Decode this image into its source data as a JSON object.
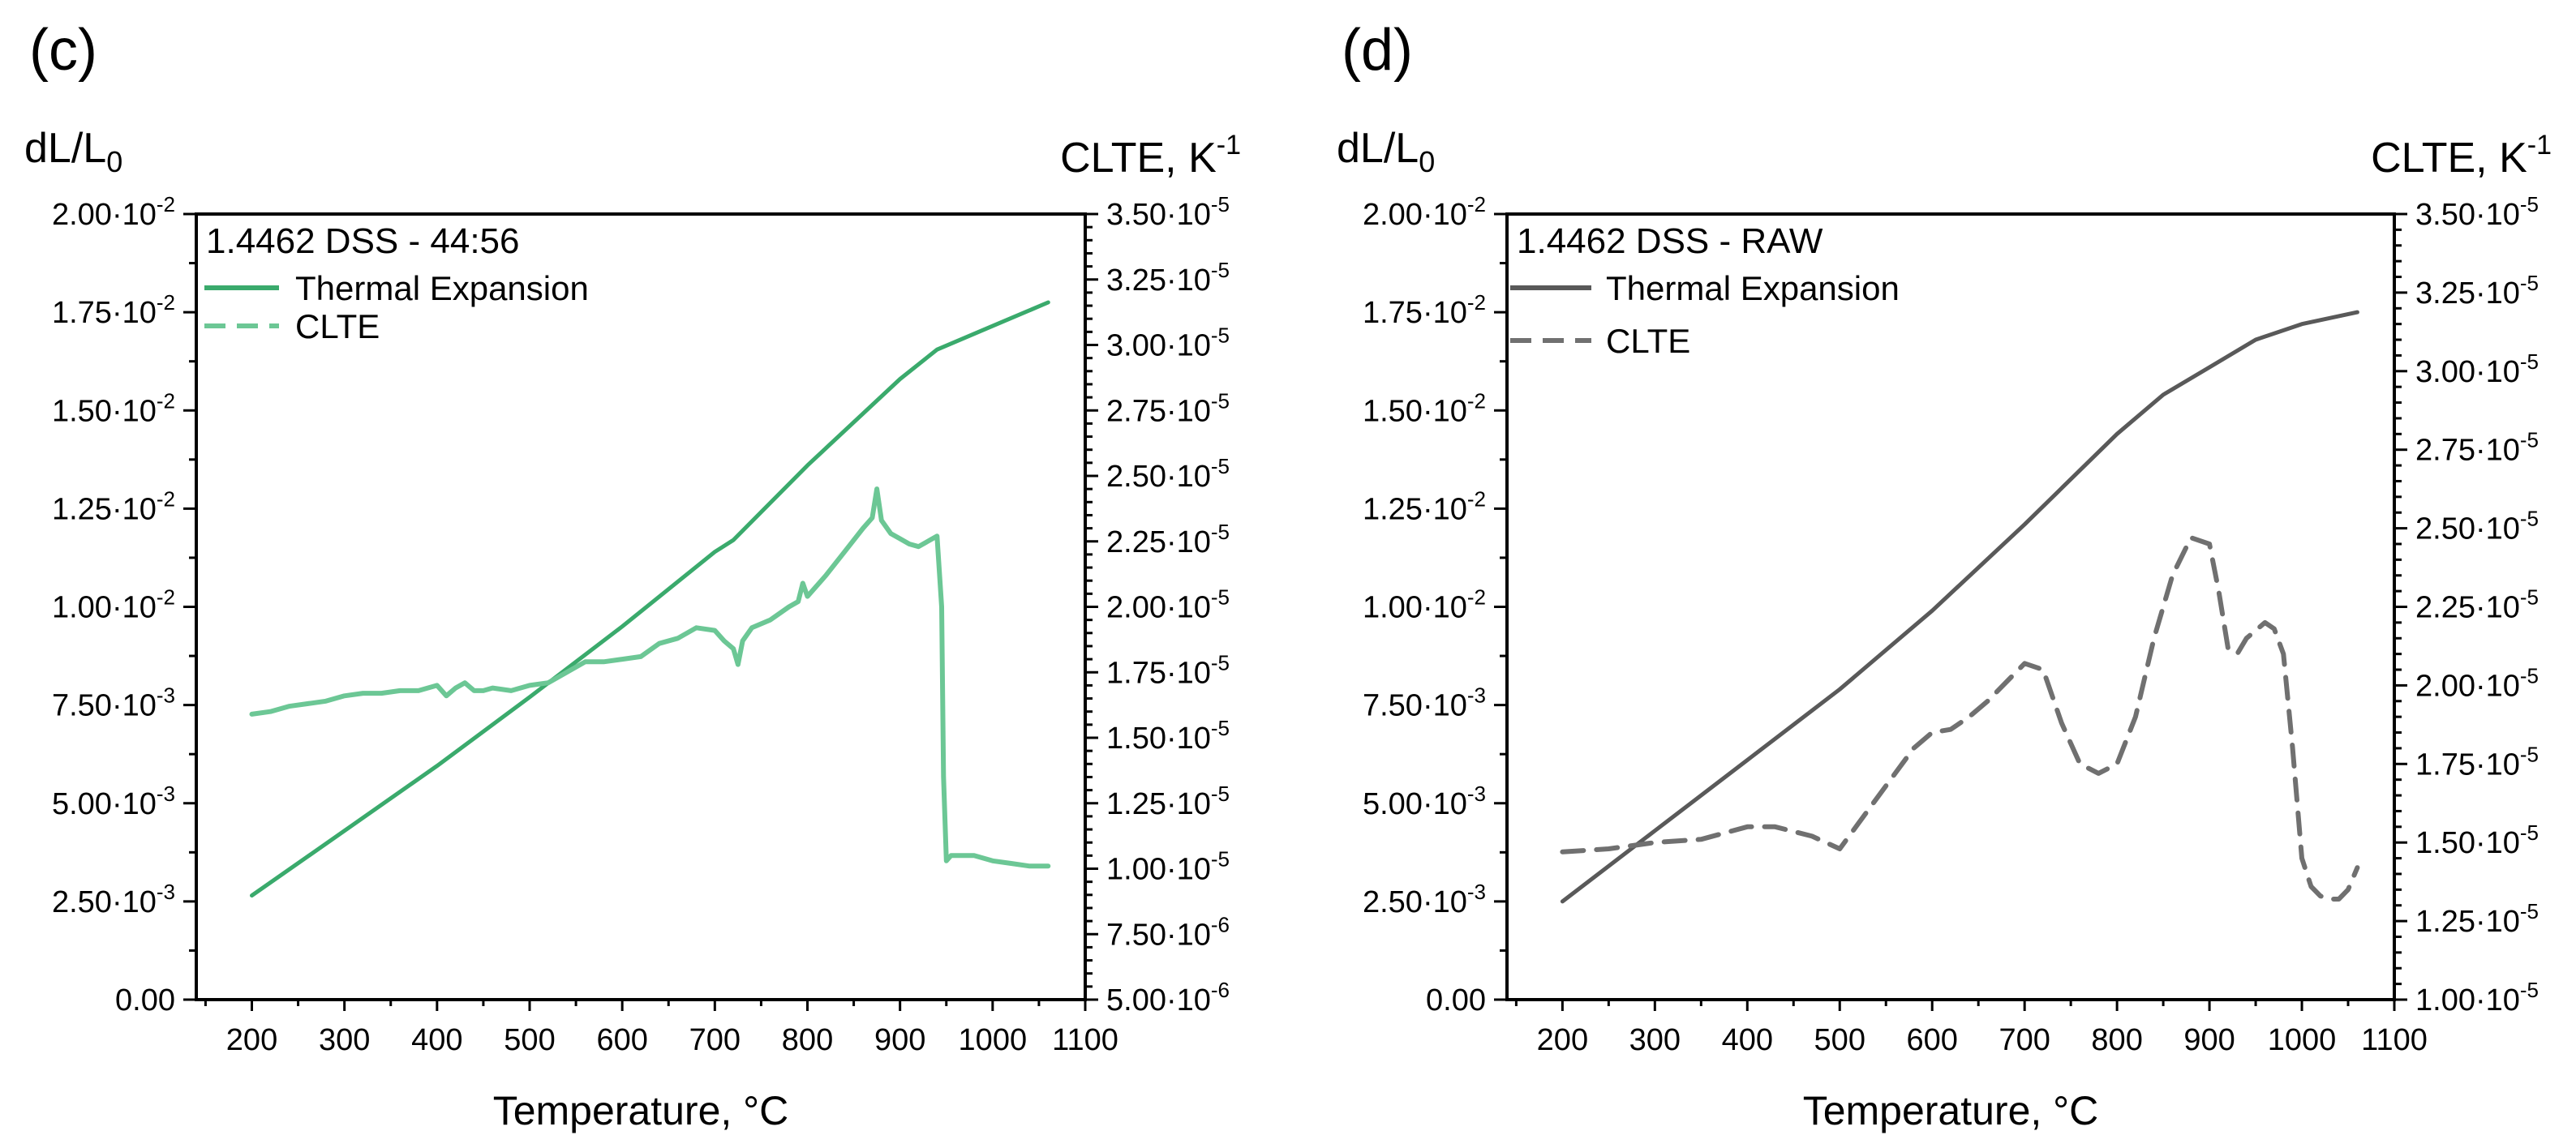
{
  "panels": [
    {
      "tag": "(c)",
      "left_axis_title": "dL/L",
      "left_axis_title_sub": "0",
      "right_axis_title": "CLTE, K",
      "right_axis_title_sup": "-1",
      "x_axis_title": "Temperature, °C",
      "box_title": "1.4462 DSS - 44:56",
      "legend": {
        "expansion": "Thermal Expansion",
        "clte": "CLTE"
      }
    },
    {
      "tag": "(d)",
      "left_axis_title": "dL/L",
      "left_axis_title_sub": "0",
      "right_axis_title": "CLTE, K",
      "right_axis_title_sup": "-1",
      "x_axis_title": "Temperature, °C",
      "box_title": "1.4462 DSS - RAW",
      "legend": {
        "expansion": "Thermal Expansion",
        "clte": "CLTE"
      }
    }
  ],
  "chart_data": [
    {
      "type": "line",
      "title": "1.4462 DSS - 44:56",
      "color": "#3aaa6c",
      "xlabel": "Temperature, °C",
      "ylabel": "dL/L0",
      "y2label": "CLTE, K-1",
      "xlim": [
        140,
        1100
      ],
      "ylim": [
        0,
        0.02
      ],
      "y2lim": [
        5e-06,
        3.5e-05
      ],
      "x_ticks": [
        200,
        300,
        400,
        500,
        600,
        700,
        800,
        900,
        1000,
        1100
      ],
      "x_tick_labels": [
        "200",
        "300",
        "400",
        "500",
        "600",
        "700",
        "800",
        "900",
        "1000",
        "1100"
      ],
      "y_ticks": [
        0,
        0.0025,
        0.005,
        0.0075,
        0.01,
        0.0125,
        0.015,
        0.0175,
        0.02
      ],
      "y_tick_labels": [
        {
          "m": "0.00",
          "e": ""
        },
        {
          "m": "2.50·10",
          "e": "-3"
        },
        {
          "m": "5.00·10",
          "e": "-3"
        },
        {
          "m": "7.50·10",
          "e": "-3"
        },
        {
          "m": "1.00·10",
          "e": "-2"
        },
        {
          "m": "1.25·10",
          "e": "-2"
        },
        {
          "m": "1.50·10",
          "e": "-2"
        },
        {
          "m": "1.75·10",
          "e": "-2"
        },
        {
          "m": "2.00·10",
          "e": "-2"
        }
      ],
      "y2_ticks": [
        5e-06,
        7.5e-06,
        1e-05,
        1.25e-05,
        1.5e-05,
        1.75e-05,
        2e-05,
        2.25e-05,
        2.5e-05,
        2.75e-05,
        3e-05,
        3.25e-05,
        3.5e-05
      ],
      "y2_tick_labels": [
        {
          "m": "5.00·10",
          "e": "-6"
        },
        {
          "m": "7.50·10",
          "e": "-6"
        },
        {
          "m": "1.00·10",
          "e": "-5"
        },
        {
          "m": "1.25·10",
          "e": "-5"
        },
        {
          "m": "1.50·10",
          "e": "-5"
        },
        {
          "m": "1.75·10",
          "e": "-5"
        },
        {
          "m": "2.00·10",
          "e": "-5"
        },
        {
          "m": "2.25·10",
          "e": "-5"
        },
        {
          "m": "2.50·10",
          "e": "-5"
        },
        {
          "m": "2.75·10",
          "e": "-5"
        },
        {
          "m": "3.00·10",
          "e": "-5"
        },
        {
          "m": "3.25·10",
          "e": "-5"
        },
        {
          "m": "3.50·10",
          "e": "-5"
        }
      ],
      "series": [
        {
          "name": "Thermal Expansion",
          "axis": "left",
          "dash": "solid",
          "x": [
            200,
            300,
            400,
            500,
            600,
            700,
            720,
            800,
            900,
            940,
            1000,
            1060
          ],
          "y": [
            0.00265,
            0.0043,
            0.00595,
            0.0077,
            0.0095,
            0.0114,
            0.0117,
            0.0136,
            0.0158,
            0.01655,
            0.01715,
            0.01775
          ]
        },
        {
          "name": "CLTE",
          "axis": "right",
          "dash": "dashed",
          "x": [
            200,
            220,
            240,
            260,
            280,
            300,
            320,
            340,
            360,
            380,
            400,
            410,
            420,
            430,
            440,
            450,
            460,
            480,
            500,
            520,
            540,
            560,
            580,
            600,
            620,
            640,
            660,
            680,
            700,
            710,
            720,
            725,
            730,
            740,
            760,
            780,
            790,
            795,
            800,
            820,
            840,
            860,
            870,
            875,
            880,
            890,
            900,
            910,
            920,
            930,
            940,
            945,
            947,
            950,
            955,
            960,
            980,
            1000,
            1020,
            1040,
            1060
          ],
          "y": [
            1.59e-05,
            1.6e-05,
            1.62e-05,
            1.63e-05,
            1.64e-05,
            1.66e-05,
            1.67e-05,
            1.67e-05,
            1.68e-05,
            1.68e-05,
            1.7e-05,
            1.66e-05,
            1.69e-05,
            1.71e-05,
            1.68e-05,
            1.68e-05,
            1.69e-05,
            1.68e-05,
            1.7e-05,
            1.71e-05,
            1.75e-05,
            1.79e-05,
            1.79e-05,
            1.8e-05,
            1.81e-05,
            1.86e-05,
            1.88e-05,
            1.92e-05,
            1.91e-05,
            1.87e-05,
            1.84e-05,
            1.78e-05,
            1.87e-05,
            1.92e-05,
            1.95e-05,
            2e-05,
            2.02e-05,
            2.09e-05,
            2.04e-05,
            2.12e-05,
            2.21e-05,
            2.3e-05,
            2.34e-05,
            2.45e-05,
            2.33e-05,
            2.28e-05,
            2.26e-05,
            2.24e-05,
            2.23e-05,
            2.25e-05,
            2.27e-05,
            2e-05,
            1.35e-05,
            1.03e-05,
            1.05e-05,
            1.05e-05,
            1.05e-05,
            1.03e-05,
            1.02e-05,
            1.01e-05,
            1.01e-05
          ]
        }
      ]
    },
    {
      "type": "line",
      "title": "1.4462 DSS - RAW",
      "color": "#595959",
      "xlabel": "Temperature, °C",
      "ylabel": "dL/L0",
      "y2label": "CLTE, K-1",
      "xlim": [
        140,
        1100
      ],
      "ylim": [
        0,
        0.02
      ],
      "y2lim": [
        1e-05,
        3.5e-05
      ],
      "x_ticks": [
        200,
        300,
        400,
        500,
        600,
        700,
        800,
        900,
        1000,
        1100
      ],
      "x_tick_labels": [
        "200",
        "300",
        "400",
        "500",
        "600",
        "700",
        "800",
        "900",
        "1000",
        "1100"
      ],
      "y_ticks": [
        0,
        0.0025,
        0.005,
        0.0075,
        0.01,
        0.0125,
        0.015,
        0.0175,
        0.02
      ],
      "y_tick_labels": [
        {
          "m": "0.00",
          "e": ""
        },
        {
          "m": "2.50·10",
          "e": "-3"
        },
        {
          "m": "5.00·10",
          "e": "-3"
        },
        {
          "m": "7.50·10",
          "e": "-3"
        },
        {
          "m": "1.00·10",
          "e": "-2"
        },
        {
          "m": "1.25·10",
          "e": "-2"
        },
        {
          "m": "1.50·10",
          "e": "-2"
        },
        {
          "m": "1.75·10",
          "e": "-2"
        },
        {
          "m": "2.00·10",
          "e": "-2"
        }
      ],
      "y2_ticks": [
        1e-05,
        1.25e-05,
        1.5e-05,
        1.75e-05,
        2e-05,
        2.25e-05,
        2.5e-05,
        2.75e-05,
        3e-05,
        3.25e-05,
        3.5e-05
      ],
      "y2_tick_labels": [
        {
          "m": "1.00·10",
          "e": "-5"
        },
        {
          "m": "1.25·10",
          "e": "-5"
        },
        {
          "m": "1.50·10",
          "e": "-5"
        },
        {
          "m": "1.75·10",
          "e": "-5"
        },
        {
          "m": "2.00·10",
          "e": "-5"
        },
        {
          "m": "2.25·10",
          "e": "-5"
        },
        {
          "m": "2.50·10",
          "e": "-5"
        },
        {
          "m": "2.75·10",
          "e": "-5"
        },
        {
          "m": "3.00·10",
          "e": "-5"
        },
        {
          "m": "3.25·10",
          "e": "-5"
        },
        {
          "m": "3.50·10",
          "e": "-5"
        }
      ],
      "series": [
        {
          "name": "Thermal Expansion",
          "axis": "left",
          "dash": "solid",
          "x": [
            200,
            300,
            400,
            500,
            600,
            700,
            800,
            850,
            900,
            950,
            1000,
            1060
          ],
          "y": [
            0.0025,
            0.0043,
            0.0061,
            0.0079,
            0.0099,
            0.0121,
            0.0144,
            0.0154,
            0.0161,
            0.0168,
            0.0172,
            0.0175
          ]
        },
        {
          "name": "CLTE",
          "axis": "right",
          "dash": "dashed",
          "x": [
            200,
            250,
            300,
            350,
            400,
            430,
            470,
            500,
            530,
            560,
            580,
            600,
            620,
            640,
            660,
            680,
            700,
            720,
            740,
            760,
            780,
            800,
            820,
            840,
            860,
            880,
            900,
            910,
            920,
            930,
            940,
            960,
            970,
            980,
            990,
            1000,
            1010,
            1020,
            1030,
            1040,
            1050,
            1060
          ],
          "y": [
            1.47e-05,
            1.48e-05,
            1.5e-05,
            1.51e-05,
            1.55e-05,
            1.55e-05,
            1.52e-05,
            1.48e-05,
            1.6e-05,
            1.72e-05,
            1.8e-05,
            1.85e-05,
            1.86e-05,
            1.9e-05,
            1.95e-05,
            2.01e-05,
            2.07e-05,
            2.05e-05,
            1.88e-05,
            1.75e-05,
            1.72e-05,
            1.75e-05,
            1.9e-05,
            2.15e-05,
            2.35e-05,
            2.47e-05,
            2.45e-05,
            2.3e-05,
            2.12e-05,
            2.1e-05,
            2.15e-05,
            2.2e-05,
            2.18e-05,
            2.1e-05,
            1.8e-05,
            1.45e-05,
            1.36e-05,
            1.33e-05,
            1.32e-05,
            1.32e-05,
            1.35e-05,
            1.42e-05
          ]
        }
      ]
    }
  ]
}
